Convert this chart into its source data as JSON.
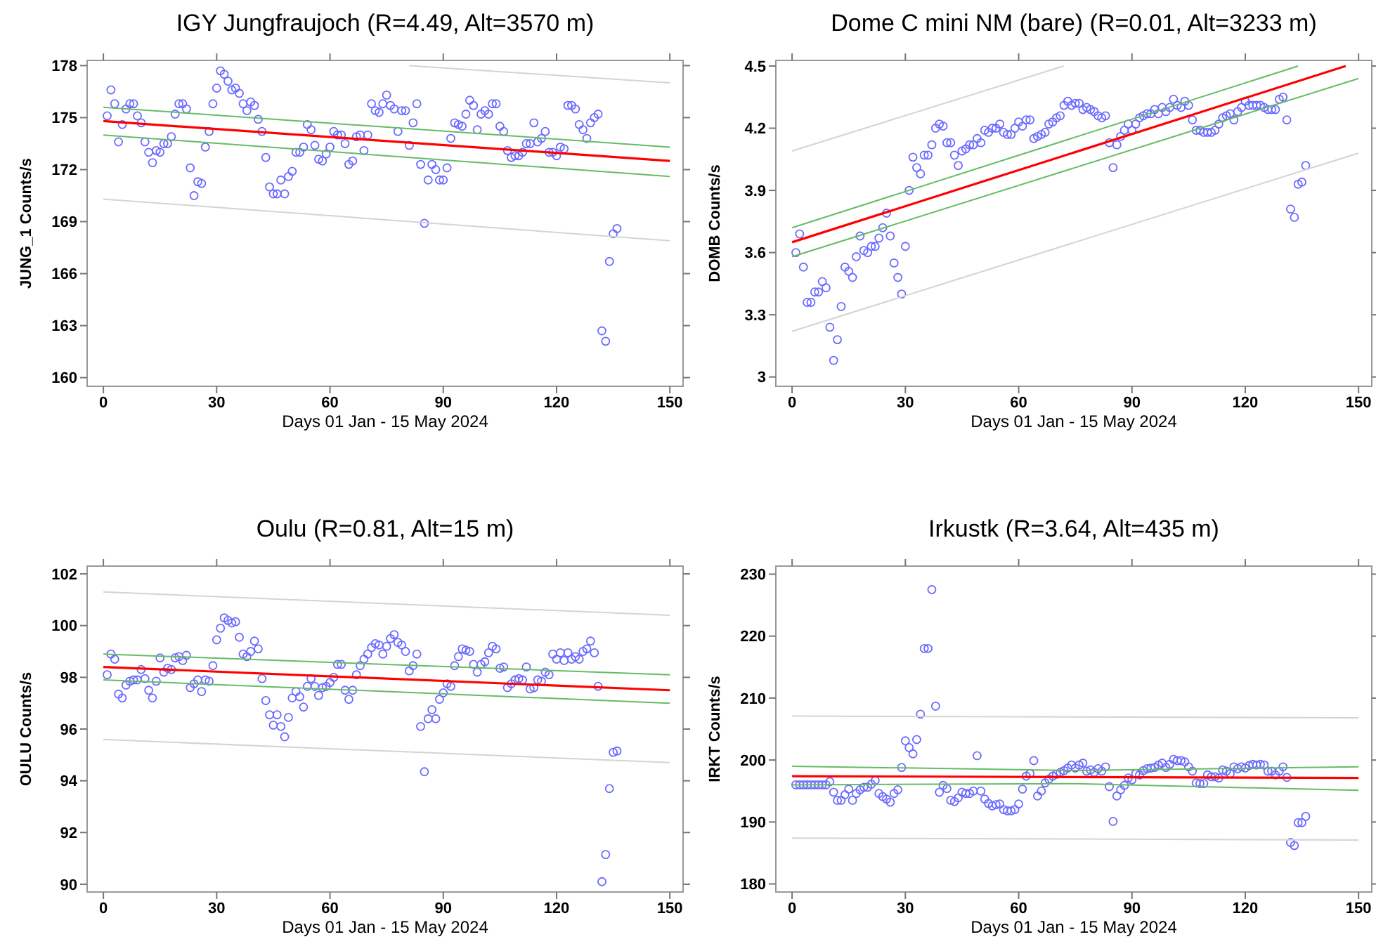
{
  "chart_data": [
    {
      "type": "scatter",
      "title": "IGY Jungfraujoch (R=4.49, Alt=3570 m)",
      "xlabel": "Days 01 Jan - 15 May 2024",
      "ylabel": "JUNG_1  Counts/s",
      "xlim": [
        -4.3,
        153.5
      ],
      "ylim": [
        159.5,
        178.3
      ],
      "xticks": [
        0,
        30,
        60,
        90,
        120,
        150
      ],
      "yticks": [
        160,
        163,
        166,
        169,
        172,
        175,
        178
      ],
      "x": [
        1,
        2,
        3,
        4,
        5,
        6,
        7,
        8,
        9,
        10,
        11,
        12,
        13,
        14,
        15,
        16,
        17,
        18,
        19,
        20,
        21,
        22,
        23,
        24,
        25,
        26,
        27,
        28,
        29,
        30,
        31,
        32,
        33,
        34,
        35,
        36,
        37,
        38,
        39,
        40,
        41,
        42,
        43,
        44,
        45,
        46,
        47,
        48,
        49,
        50,
        51,
        52,
        53,
        54,
        55,
        56,
        57,
        58,
        59,
        60,
        61,
        62,
        63,
        64,
        65,
        66,
        67,
        68,
        69,
        70,
        71,
        72,
        73,
        74,
        75,
        76,
        77,
        78,
        79,
        80,
        81,
        82,
        83,
        84,
        85,
        86,
        87,
        88,
        89,
        90,
        91,
        92,
        93,
        94,
        95,
        96,
        97,
        98,
        99,
        100,
        101,
        102,
        103,
        104,
        105,
        106,
        107,
        108,
        109,
        110,
        111,
        112,
        113,
        114,
        115,
        116,
        117,
        118,
        119,
        120,
        121,
        122,
        123,
        124,
        125,
        126,
        127,
        128,
        129,
        130,
        131,
        132,
        133,
        134,
        135,
        136
      ],
      "series": [
        {
          "marker": "circle",
          "color": "#6b6bff",
          "values": [
            175.1,
            176.6,
            175.8,
            173.6,
            174.6,
            175.5,
            175.8,
            175.8,
            175.1,
            174.7,
            173.6,
            173.0,
            172.4,
            173.1,
            173.0,
            173.5,
            173.5,
            173.9,
            175.2,
            175.8,
            175.8,
            175.5,
            172.1,
            170.5,
            171.3,
            171.2,
            173.3,
            174.2,
            175.8,
            176.7,
            177.7,
            177.5,
            177.1,
            176.6,
            176.7,
            176.4,
            175.8,
            175.4,
            175.9,
            175.7,
            174.9,
            174.2,
            172.7,
            171.0,
            170.6,
            170.6,
            171.4,
            170.6,
            171.6,
            171.9,
            173.0,
            173.0,
            173.3,
            174.6,
            174.3,
            173.4,
            172.6,
            172.5,
            172.9,
            173.3,
            174.2,
            174.0,
            174.0,
            173.5,
            172.3,
            172.5,
            173.9,
            174.0,
            173.1,
            174.0,
            175.8,
            175.4,
            175.3,
            175.8,
            176.3,
            175.7,
            175.5,
            174.2,
            175.4,
            175.4,
            173.4,
            174.7,
            175.8,
            172.3,
            168.9,
            171.4,
            172.3,
            172.0,
            171.4,
            171.4,
            172.1,
            173.8,
            174.7,
            174.6,
            174.5,
            175.2,
            176.0,
            175.7,
            174.3,
            175.2,
            175.4,
            175.2,
            175.8,
            175.8,
            174.5,
            174.2,
            173.1,
            172.7,
            172.8,
            172.8,
            173.0,
            173.5,
            173.5,
            174.7,
            173.6,
            173.8,
            174.2,
            173.0,
            173.0,
            172.8,
            173.3,
            173.2,
            175.7,
            175.7,
            175.5,
            174.6,
            174.3,
            173.8,
            174.7,
            175.0,
            175.2,
            162.7,
            162.1,
            166.7,
            168.3,
            168.6
          ]
        },
        {
          "type": "line",
          "color": "#ff0000",
          "x": [
            0,
            150
          ],
          "values": [
            174.8,
            172.5
          ]
        },
        {
          "type": "line",
          "color": "#66bb66",
          "x": [
            0,
            150
          ],
          "values": [
            175.6,
            173.3
          ]
        },
        {
          "type": "line",
          "color": "#66bb66",
          "x": [
            0,
            150
          ],
          "values": [
            174.0,
            171.6
          ]
        },
        {
          "type": "line",
          "color": "#d4d4d4",
          "x": [
            81,
            150
          ],
          "values": [
            178.0,
            177.0
          ]
        },
        {
          "type": "line",
          "color": "#d4d4d4",
          "x": [
            0,
            150
          ],
          "values": [
            170.3,
            167.9
          ]
        }
      ]
    },
    {
      "type": "scatter",
      "title": "Dome C mini NM (bare) (R=0.01, Alt=3233 m)",
      "xlabel": "Days 01 Jan - 15 May 2024",
      "ylabel": "DOMB  Counts/s",
      "xlim": [
        -4.3,
        153.5
      ],
      "ylim": [
        2.955,
        4.527
      ],
      "xticks": [
        0,
        30,
        60,
        90,
        120,
        150
      ],
      "yticks": [
        3,
        3.3,
        3.6,
        3.9,
        4.2,
        4.5
      ],
      "x": [
        1,
        2,
        3,
        4,
        5,
        6,
        7,
        8,
        9,
        10,
        11,
        12,
        13,
        14,
        15,
        16,
        17,
        18,
        19,
        20,
        21,
        22,
        23,
        24,
        25,
        26,
        27,
        28,
        29,
        30,
        31,
        32,
        33,
        34,
        35,
        36,
        37,
        38,
        39,
        40,
        41,
        42,
        43,
        44,
        45,
        46,
        47,
        48,
        49,
        50,
        51,
        52,
        53,
        54,
        55,
        56,
        57,
        58,
        59,
        60,
        61,
        62,
        63,
        64,
        65,
        66,
        67,
        68,
        69,
        70,
        71,
        72,
        73,
        74,
        75,
        76,
        77,
        78,
        79,
        80,
        81,
        82,
        83,
        84,
        85,
        86,
        87,
        88,
        89,
        90,
        91,
        92,
        93,
        94,
        95,
        96,
        97,
        98,
        99,
        100,
        101,
        102,
        103,
        104,
        105,
        106,
        107,
        108,
        109,
        110,
        111,
        112,
        113,
        114,
        115,
        116,
        117,
        118,
        119,
        120,
        121,
        122,
        123,
        124,
        125,
        126,
        127,
        128,
        129,
        130,
        131,
        132,
        133,
        134,
        135,
        136
      ],
      "series": [
        {
          "marker": "circle",
          "color": "#6b6bff",
          "values": [
            3.6,
            3.69,
            3.53,
            3.36,
            3.36,
            3.41,
            3.41,
            3.46,
            3.43,
            3.24,
            3.08,
            3.18,
            3.34,
            3.53,
            3.51,
            3.48,
            3.58,
            3.68,
            3.61,
            3.6,
            3.63,
            3.63,
            3.67,
            3.72,
            3.79,
            3.68,
            3.55,
            3.48,
            3.4,
            3.63,
            3.9,
            4.06,
            4.01,
            3.98,
            4.07,
            4.07,
            4.12,
            4.2,
            4.22,
            4.21,
            4.13,
            4.13,
            4.07,
            4.02,
            4.09,
            4.1,
            4.12,
            4.12,
            4.15,
            4.13,
            4.19,
            4.18,
            4.2,
            4.2,
            4.22,
            4.18,
            4.17,
            4.17,
            4.2,
            4.23,
            4.21,
            4.24,
            4.24,
            4.15,
            4.16,
            4.17,
            4.18,
            4.22,
            4.23,
            4.25,
            4.26,
            4.31,
            4.33,
            4.31,
            4.32,
            4.32,
            4.29,
            4.3,
            4.29,
            4.28,
            4.26,
            4.25,
            4.26,
            4.13,
            4.01,
            4.12,
            4.16,
            4.19,
            4.22,
            4.19,
            4.22,
            4.25,
            4.26,
            4.27,
            4.27,
            4.29,
            4.27,
            4.3,
            4.28,
            4.3,
            4.34,
            4.31,
            4.3,
            4.33,
            4.31,
            4.24,
            4.19,
            4.19,
            4.18,
            4.18,
            4.18,
            4.19,
            4.22,
            4.25,
            4.26,
            4.27,
            4.24,
            4.28,
            4.3,
            4.33,
            4.31,
            4.31,
            4.31,
            4.31,
            4.3,
            4.29,
            4.29,
            4.29,
            4.34,
            4.35,
            4.24,
            3.81,
            3.77,
            3.93,
            3.94,
            4.02
          ]
        },
        {
          "type": "line",
          "color": "#ff0000",
          "x": [
            0,
            146.6
          ],
          "values": [
            3.65,
            4.5
          ]
        },
        {
          "type": "line",
          "color": "#66bb66",
          "x": [
            0,
            134
          ],
          "values": [
            3.72,
            4.5
          ]
        },
        {
          "type": "line",
          "color": "#66bb66",
          "x": [
            0,
            150
          ],
          "values": [
            3.58,
            4.44
          ]
        },
        {
          "type": "line",
          "color": "#d4d4d4",
          "x": [
            0,
            71.9
          ],
          "values": [
            4.09,
            4.5
          ]
        },
        {
          "type": "line",
          "color": "#d4d4d4",
          "x": [
            0,
            150
          ],
          "values": [
            3.22,
            4.08
          ]
        }
      ]
    },
    {
      "type": "scatter",
      "title": "Oulu (R=0.81, Alt=15 m)",
      "xlabel": "Days 01 Jan - 15 May 2024",
      "ylabel": "OULU  Counts/s",
      "xlim": [
        -4.3,
        153.5
      ],
      "ylim": [
        89.7,
        102.3
      ],
      "xticks": [
        0,
        30,
        60,
        90,
        120,
        150
      ],
      "yticks": [
        90,
        92,
        94,
        96,
        98,
        100,
        102
      ],
      "x": [
        1,
        2,
        3,
        4,
        5,
        6,
        7,
        8,
        9,
        10,
        11,
        12,
        13,
        14,
        15,
        16,
        17,
        18,
        19,
        20,
        21,
        22,
        23,
        24,
        25,
        26,
        27,
        28,
        29,
        30,
        31,
        32,
        33,
        34,
        35,
        36,
        37,
        38,
        39,
        40,
        41,
        42,
        43,
        44,
        45,
        46,
        47,
        48,
        49,
        50,
        51,
        52,
        53,
        54,
        55,
        56,
        57,
        58,
        59,
        60,
        61,
        62,
        63,
        64,
        65,
        66,
        67,
        68,
        69,
        70,
        71,
        72,
        73,
        74,
        75,
        76,
        77,
        78,
        79,
        80,
        81,
        82,
        83,
        84,
        85,
        86,
        87,
        88,
        89,
        90,
        91,
        92,
        93,
        94,
        95,
        96,
        97,
        98,
        99,
        100,
        101,
        102,
        103,
        104,
        105,
        106,
        107,
        108,
        109,
        110,
        111,
        112,
        113,
        114,
        115,
        116,
        117,
        118,
        119,
        120,
        121,
        122,
        123,
        124,
        125,
        126,
        127,
        128,
        129,
        130,
        131,
        132,
        133,
        134,
        135,
        136
      ],
      "series": [
        {
          "marker": "circle",
          "color": "#6b6bff",
          "values": [
            98.1,
            98.9,
            98.7,
            97.35,
            97.2,
            97.7,
            97.85,
            97.9,
            97.9,
            98.3,
            97.95,
            97.5,
            97.2,
            97.85,
            98.75,
            98.2,
            98.35,
            98.3,
            98.75,
            98.8,
            98.65,
            98.85,
            97.6,
            97.75,
            97.9,
            97.45,
            97.9,
            97.85,
            98.45,
            99.45,
            99.9,
            100.3,
            100.2,
            100.1,
            100.15,
            99.55,
            98.9,
            98.8,
            99.0,
            99.4,
            99.1,
            97.95,
            97.1,
            96.55,
            96.15,
            96.55,
            96.1,
            95.7,
            96.45,
            97.2,
            97.45,
            97.25,
            96.85,
            97.65,
            97.95,
            97.65,
            97.3,
            97.6,
            97.65,
            97.8,
            98.0,
            98.5,
            98.5,
            97.5,
            97.15,
            97.5,
            98.1,
            98.45,
            98.7,
            98.9,
            99.15,
            99.3,
            99.25,
            98.9,
            99.2,
            99.5,
            99.65,
            99.35,
            99.25,
            99.0,
            98.25,
            98.45,
            98.9,
            96.1,
            94.35,
            96.4,
            96.75,
            96.4,
            97.15,
            97.4,
            97.75,
            97.65,
            98.45,
            98.8,
            99.1,
            99.05,
            99.0,
            98.5,
            98.2,
            98.5,
            98.6,
            98.95,
            99.2,
            99.1,
            98.35,
            98.4,
            97.6,
            97.75,
            97.9,
            97.95,
            97.9,
            98.4,
            97.55,
            97.6,
            97.9,
            97.85,
            98.2,
            98.1,
            98.9,
            98.7,
            98.95,
            98.65,
            98.95,
            98.7,
            98.8,
            98.7,
            99.0,
            99.1,
            99.4,
            98.95,
            97.65,
            90.1,
            91.15,
            93.7,
            95.1,
            95.15
          ]
        },
        {
          "type": "line",
          "color": "#ff0000",
          "x": [
            0,
            150
          ],
          "values": [
            98.4,
            97.5
          ]
        },
        {
          "type": "line",
          "color": "#66bb66",
          "x": [
            0,
            150
          ],
          "values": [
            98.9,
            98.1
          ]
        },
        {
          "type": "line",
          "color": "#66bb66",
          "x": [
            0,
            150
          ],
          "values": [
            97.9,
            97.0
          ]
        },
        {
          "type": "line",
          "color": "#d4d4d4",
          "x": [
            0,
            150
          ],
          "values": [
            101.3,
            100.4
          ]
        },
        {
          "type": "line",
          "color": "#d4d4d4",
          "x": [
            0,
            150
          ],
          "values": [
            95.6,
            94.7
          ]
        }
      ]
    },
    {
      "type": "scatter",
      "title": "Irkustk (R=3.64, Alt=435 m)",
      "xlabel": "Days 01 Jan - 15 May 2024",
      "ylabel": "IRKT  Counts/s",
      "xlim": [
        -4.3,
        153.5
      ],
      "ylim": [
        178.7,
        231.3
      ],
      "xticks": [
        0,
        30,
        60,
        90,
        120,
        150
      ],
      "yticks": [
        180,
        190,
        200,
        210,
        220,
        230
      ],
      "x": [
        1,
        2,
        3,
        4,
        5,
        6,
        7,
        8,
        9,
        10,
        11,
        12,
        13,
        14,
        15,
        16,
        17,
        18,
        19,
        20,
        21,
        22,
        23,
        24,
        25,
        26,
        27,
        28,
        29,
        30,
        31,
        32,
        33,
        34,
        35,
        36,
        37,
        38,
        39,
        40,
        41,
        42,
        43,
        44,
        45,
        46,
        47,
        48,
        49,
        50,
        51,
        52,
        53,
        54,
        55,
        56,
        57,
        58,
        59,
        60,
        61,
        62,
        63,
        64,
        65,
        66,
        67,
        68,
        69,
        70,
        71,
        72,
        73,
        74,
        75,
        76,
        77,
        78,
        79,
        80,
        81,
        82,
        83,
        84,
        85,
        86,
        87,
        88,
        89,
        90,
        91,
        92,
        93,
        94,
        95,
        96,
        97,
        98,
        99,
        100,
        101,
        102,
        103,
        104,
        105,
        106,
        107,
        108,
        109,
        110,
        111,
        112,
        113,
        114,
        115,
        116,
        117,
        118,
        119,
        120,
        121,
        122,
        123,
        124,
        125,
        126,
        127,
        128,
        129,
        130,
        131,
        132,
        133,
        134,
        135,
        136
      ],
      "series": [
        {
          "marker": "circle",
          "color": "#6b6bff",
          "values": [
            196.0,
            196.0,
            196.0,
            196.0,
            196.0,
            196.0,
            196.0,
            196.0,
            196.0,
            196.5,
            194.8,
            193.5,
            193.5,
            194.4,
            195.3,
            193.5,
            194.6,
            195.2,
            195.6,
            195.6,
            196.1,
            196.7,
            194.6,
            194.1,
            193.7,
            193.2,
            194.6,
            195.2,
            198.8,
            203.1,
            202.0,
            201.0,
            203.3,
            207.4,
            218.0,
            218.0,
            227.5,
            208.7,
            194.8,
            195.9,
            195.4,
            193.5,
            193.3,
            193.9,
            194.8,
            194.6,
            194.6,
            195.0,
            200.7,
            195.0,
            193.7,
            193.0,
            192.6,
            192.8,
            192.9,
            192.0,
            191.8,
            191.8,
            192.0,
            192.9,
            195.3,
            197.4,
            197.8,
            199.9,
            194.2,
            195.0,
            196.3,
            196.9,
            197.4,
            197.7,
            198.0,
            198.3,
            198.7,
            199.2,
            198.7,
            199.2,
            199.5,
            198.2,
            198.4,
            198.0,
            198.6,
            198.2,
            198.9,
            195.7,
            190.1,
            194.2,
            195.2,
            195.9,
            197.1,
            196.8,
            197.8,
            197.6,
            198.3,
            198.6,
            198.7,
            198.8,
            199.2,
            199.5,
            198.8,
            199.3,
            200.1,
            199.9,
            199.9,
            199.7,
            198.9,
            198.2,
            196.3,
            196.2,
            196.2,
            197.6,
            197.3,
            197.3,
            197.1,
            198.4,
            198.2,
            197.8,
            198.9,
            198.6,
            198.9,
            198.7,
            199.1,
            199.3,
            199.2,
            199.3,
            199.2,
            198.2,
            198.2,
            197.6,
            198.2,
            198.9,
            197.2,
            186.7,
            186.2,
            189.9,
            189.9,
            190.9
          ]
        },
        {
          "type": "line",
          "color": "#ff0000",
          "x": [
            0,
            150
          ],
          "values": [
            197.4,
            197.1
          ]
        },
        {
          "type": "line",
          "color": "#66bb66",
          "x": [
            0,
            75,
            150
          ],
          "values": [
            199.0,
            198.3,
            198.9
          ]
        },
        {
          "type": "line",
          "color": "#66bb66",
          "x": [
            0,
            75,
            150
          ],
          "values": [
            196.0,
            196.2,
            195.1
          ]
        },
        {
          "type": "line",
          "color": "#d4d4d4",
          "x": [
            0,
            150
          ],
          "values": [
            207.1,
            206.8
          ]
        },
        {
          "type": "line",
          "color": "#d4d4d4",
          "x": [
            0,
            150
          ],
          "values": [
            187.4,
            187.1
          ]
        }
      ]
    }
  ]
}
